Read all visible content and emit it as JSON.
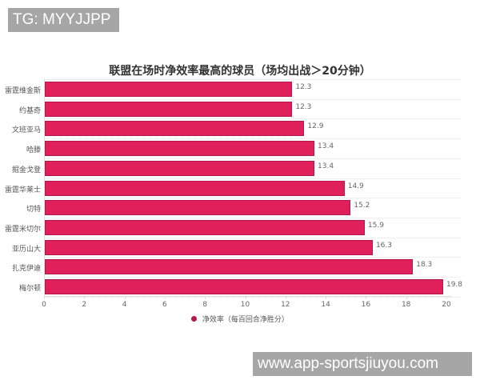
{
  "watermarks": {
    "top": "TG: MYYJJPP",
    "bottom": "www.app-sportsjiuyou.com"
  },
  "colors": {
    "bar": "#e0205a",
    "bar_border": "#b5174a",
    "watermark_bg": "#a6a6a6"
  },
  "chart_data": {
    "type": "bar",
    "orientation": "horizontal",
    "title": "联盟在场时净效率最高的球员（场均出战＞20分钟）",
    "xlabel": "",
    "ylabel": "",
    "categories": [
      "雷霆维金斯",
      "约基奇",
      "文班亚马",
      "哈滕",
      "掘金戈登",
      "雷霆华莱士",
      "切特",
      "雷霆米切尔",
      "亚历山大",
      "扎克伊迪",
      "梅尔顿"
    ],
    "series": [
      {
        "name": "净效率（每百回合净胜分）",
        "values": [
          12.3,
          12.3,
          12.9,
          13.4,
          13.4,
          14.9,
          15.2,
          15.9,
          16.3,
          18.3,
          19.8
        ]
      }
    ],
    "value_labels": [
      "12.3",
      "12.3",
      "12.9",
      "13.4",
      "13.4",
      "14.9",
      "15.2",
      "15.9",
      "16.3",
      "18.3",
      "19.8"
    ],
    "xlim": [
      0,
      20
    ],
    "xticks": [
      "0",
      "2",
      "4",
      "6",
      "8",
      "10",
      "12",
      "14",
      "16",
      "18",
      "20"
    ],
    "grid": true,
    "legend_position": "bottom",
    "legend": [
      "净效率（每百回合净胜分）"
    ]
  }
}
